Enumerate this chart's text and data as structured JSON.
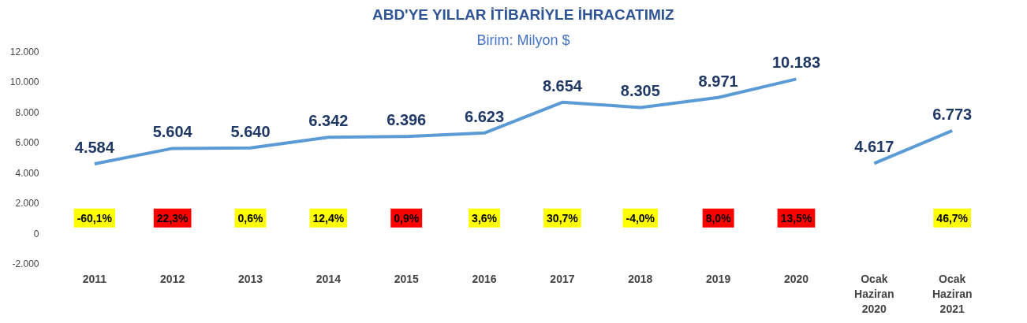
{
  "chart_data": {
    "type": "line",
    "title": "ABD'YE YILLAR İTİBARİYLE İHRACATIMIZ",
    "subtitle": "Birim: Milyon $",
    "categories": [
      "2011",
      "2012",
      "2013",
      "2014",
      "2015",
      "2016",
      "2017",
      "2018",
      "2019",
      "2020",
      "Ocak\nHaziran\n2020",
      "Ocak\nHaziran\n2021"
    ],
    "series": [
      {
        "color": "#5b9bd5",
        "values": [
          4584,
          5604,
          5640,
          6342,
          6396,
          6623,
          8654,
          8305,
          8971,
          10183,
          null,
          null
        ],
        "value_labels": [
          "4.584",
          "5.604",
          "5.640",
          "6.342",
          "6.396",
          "6.623",
          "8.654",
          "8.305",
          "8.971",
          "10.183",
          null,
          null
        ]
      },
      {
        "color": "#5b9bd5",
        "values": [
          null,
          null,
          null,
          null,
          null,
          null,
          null,
          null,
          null,
          null,
          4617,
          6773
        ],
        "value_labels": [
          null,
          null,
          null,
          null,
          null,
          null,
          null,
          null,
          null,
          null,
          "4.617",
          "6.773"
        ]
      }
    ],
    "ylim": [
      -2000,
      12000
    ],
    "yticks": [
      {
        "value": -2000,
        "label": "-2.000"
      },
      {
        "value": 0,
        "label": "0"
      },
      {
        "value": 2000,
        "label": "2.000"
      },
      {
        "value": 4000,
        "label": "4.000"
      },
      {
        "value": 6000,
        "label": "6.000"
      },
      {
        "value": 8000,
        "label": "8.000"
      },
      {
        "value": 10000,
        "label": "10.000"
      },
      {
        "value": 12000,
        "label": "12.000"
      }
    ],
    "annotations": [
      "-60,1%",
      "22,3%",
      "0,6%",
      "12,4%",
      "0,9%",
      "3,6%",
      "30,7%",
      "-4,0%",
      "8,0%",
      "13,5%",
      "46,7%"
    ],
    "grid": false,
    "marker": "none",
    "line_style": "solid"
  }
}
